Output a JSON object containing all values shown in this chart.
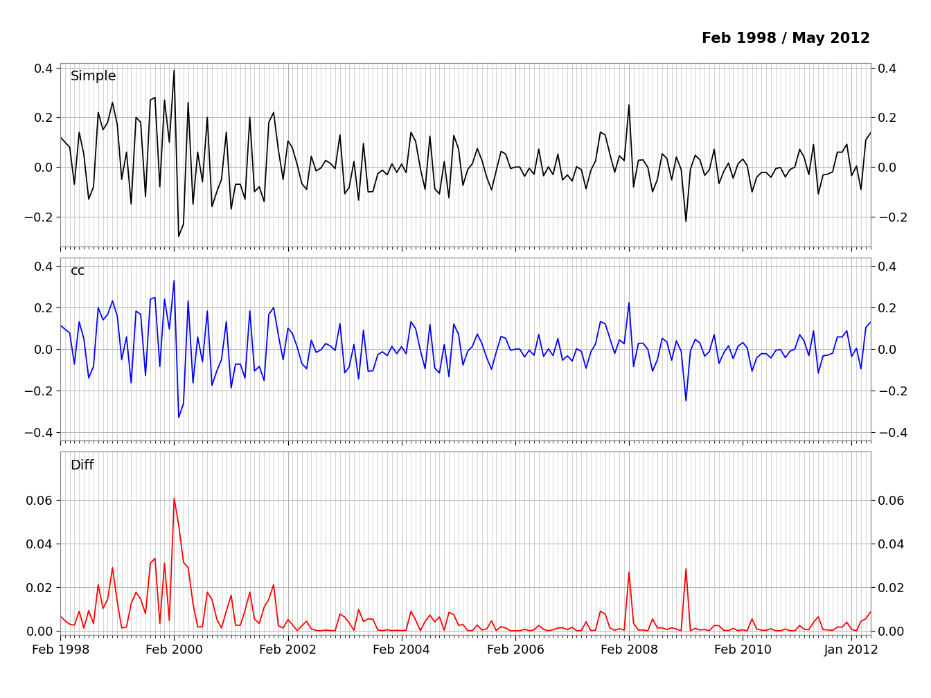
{
  "title_annotation": "Feb 1998 / May 2012",
  "panel_labels": [
    "Simple",
    "cc",
    "Diff"
  ],
  "panel_colors": [
    "black",
    "blue",
    "red"
  ],
  "ylim_simple": [
    -0.32,
    0.42
  ],
  "ylim_cc": [
    -0.44,
    0.44
  ],
  "ylim_diff": [
    -0.002,
    0.082
  ],
  "yticks_simple": [
    -0.2,
    0.0,
    0.2,
    0.4
  ],
  "yticks_cc": [
    -0.4,
    -0.2,
    0.0,
    0.2,
    0.4
  ],
  "yticks_diff": [
    0.0,
    0.02,
    0.04,
    0.06
  ],
  "xtick_labels": [
    "Feb 1998",
    "Feb 2000",
    "Feb 2002",
    "Feb 2004",
    "Feb 2006",
    "Feb 2008",
    "Feb 2010",
    "Jan 2012"
  ],
  "background_color": "#ffffff",
  "grid_color": "#b0b0b0",
  "title_fontsize": 15,
  "label_fontsize": 14,
  "tick_fontsize": 13,
  "line_width": 1.3,
  "annotation_fontsize": 15,
  "seed": 137
}
